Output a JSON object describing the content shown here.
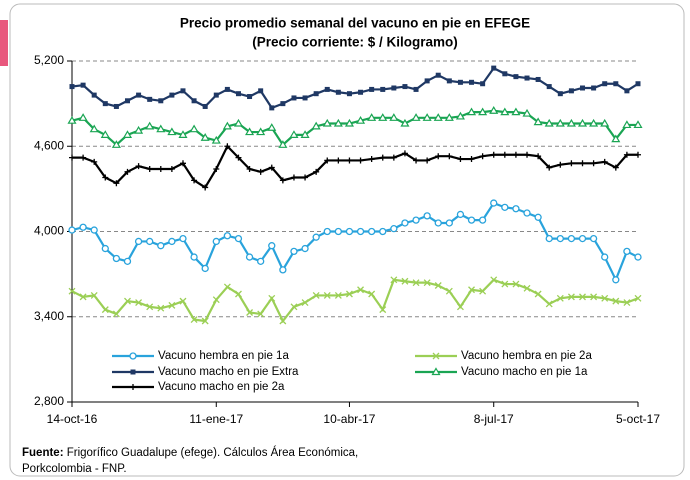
{
  "chart_data": {
    "type": "line",
    "title": "Precio promedio semanal del vacuno en pie en EFEGE",
    "subtitle": "(Precio corriente: $ / Kilogramo)",
    "categories": [
      "14-oct-16",
      null,
      null,
      null,
      null,
      null,
      null,
      null,
      null,
      null,
      null,
      null,
      null,
      "11-ene-17",
      null,
      null,
      null,
      null,
      null,
      null,
      null,
      null,
      null,
      null,
      null,
      "10-abr-17",
      null,
      null,
      null,
      null,
      null,
      null,
      null,
      null,
      null,
      null,
      null,
      null,
      "8-jul-17",
      null,
      null,
      null,
      null,
      null,
      null,
      null,
      null,
      null,
      null,
      null,
      null,
      "5-oct-17"
    ],
    "series": [
      {
        "name": "Vacuno hembra en pie 1a",
        "color": "#29a3dc",
        "marker": "circle",
        "values": [
          4010,
          4030,
          4010,
          3880,
          3810,
          3790,
          3930,
          3930,
          3900,
          3930,
          3950,
          3820,
          3740,
          3930,
          3970,
          3950,
          3820,
          3790,
          3900,
          3730,
          3860,
          3880,
          3960,
          4000,
          4000,
          4000,
          4000,
          4000,
          4000,
          4020,
          4060,
          4080,
          4110,
          4060,
          4060,
          4120,
          4080,
          4080,
          4200,
          4170,
          4160,
          4130,
          4100,
          3950,
          3950,
          3950,
          3950,
          3950,
          3820,
          3660,
          3860,
          3820
        ]
      },
      {
        "name": "Vacuno hembra en pie 2a",
        "color": "#9bcf55",
        "marker": "x",
        "values": [
          3580,
          3540,
          3550,
          3450,
          3420,
          3510,
          3500,
          3470,
          3460,
          3480,
          3510,
          3380,
          3370,
          3520,
          3610,
          3560,
          3430,
          3420,
          3530,
          3370,
          3470,
          3500,
          3550,
          3550,
          3550,
          3560,
          3590,
          3560,
          3450,
          3660,
          3650,
          3640,
          3640,
          3620,
          3580,
          3470,
          3590,
          3580,
          3660,
          3630,
          3630,
          3600,
          3560,
          3490,
          3530,
          3540,
          3540,
          3540,
          3530,
          3510,
          3500,
          3530
        ]
      },
      {
        "name": "Vacuno macho en pie Extra",
        "color": "#1f3864",
        "marker": "square",
        "values": [
          5020,
          5030,
          4960,
          4900,
          4880,
          4920,
          4960,
          4930,
          4920,
          4960,
          4990,
          4920,
          4880,
          4960,
          5000,
          4970,
          4950,
          4990,
          4870,
          4900,
          4940,
          4940,
          4970,
          5000,
          4980,
          4970,
          4980,
          5000,
          5000,
          5010,
          5020,
          5000,
          5060,
          5100,
          5060,
          5050,
          5050,
          5040,
          5150,
          5110,
          5090,
          5080,
          5070,
          5020,
          4970,
          4990,
          5010,
          5010,
          5040,
          5040,
          4990,
          5040
        ]
      },
      {
        "name": "Vacuno macho en pie 1a",
        "color": "#1aa553",
        "marker": "triangle",
        "values": [
          4780,
          4800,
          4720,
          4680,
          4610,
          4680,
          4710,
          4740,
          4720,
          4700,
          4680,
          4720,
          4660,
          4640,
          4740,
          4760,
          4700,
          4700,
          4730,
          4610,
          4680,
          4680,
          4740,
          4760,
          4760,
          4760,
          4780,
          4800,
          4800,
          4800,
          4760,
          4800,
          4800,
          4800,
          4800,
          4810,
          4840,
          4840,
          4850,
          4840,
          4840,
          4830,
          4770,
          4760,
          4760,
          4760,
          4760,
          4760,
          4760,
          4650,
          4750,
          4750
        ]
      },
      {
        "name": "Vacuno macho en pie 2a",
        "color": "#000000",
        "marker": "plus",
        "values": [
          4520,
          4520,
          4490,
          4380,
          4340,
          4420,
          4460,
          4440,
          4440,
          4440,
          4480,
          4360,
          4310,
          4440,
          4600,
          4520,
          4440,
          4420,
          4450,
          4360,
          4380,
          4380,
          4420,
          4500,
          4500,
          4500,
          4500,
          4510,
          4520,
          4520,
          4550,
          4500,
          4500,
          4530,
          4530,
          4510,
          4510,
          4530,
          4540,
          4540,
          4540,
          4540,
          4530,
          4450,
          4470,
          4480,
          4480,
          4480,
          4490,
          4450,
          4540,
          4540
        ]
      }
    ],
    "ylim": [
      2800,
      5200
    ],
    "yticks": [
      {
        "value": 2800,
        "label": "2,800"
      },
      {
        "value": 3400,
        "label": "3,400"
      },
      {
        "value": 4000,
        "label": "4,000"
      },
      {
        "value": 4600,
        "label": "4,600"
      },
      {
        "value": 5200,
        "label": "5,200"
      }
    ],
    "grid": true,
    "legend": "bottom"
  },
  "footer": {
    "label": "Fuente:",
    "lines": [
      "Frigorífico Guadalupe (efege). Cálculos Área Económica,",
      "Porkcolombia  - FNP."
    ]
  }
}
